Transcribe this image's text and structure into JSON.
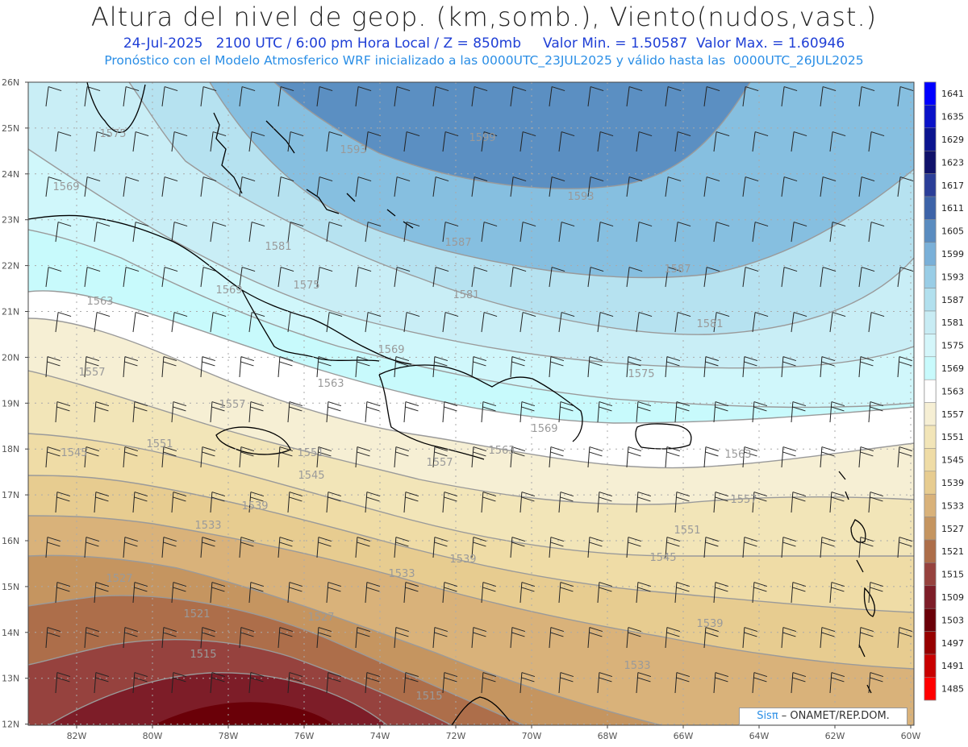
{
  "header": {
    "title": "Altura del nivel de geop. (km,somb.), Viento(nudos,vast.)",
    "line1": "24-Jul-2025   2100 UTC / 6:00 pm Hora Local / Z = 850mb     Valor Min. = 1.50587  Valor Max. = 1.60946",
    "line2": "Pronóstico con el Modelo Atmosferico WRF inicializado a las 0000UTC_23JUL2025 y válido hasta las  0000UTC_26JUL2025"
  },
  "map": {
    "lat_ticks": [
      "26N",
      "25N",
      "24N",
      "23N",
      "22N",
      "21N",
      "20N",
      "19N",
      "18N",
      "17N",
      "16N",
      "15N",
      "14N",
      "13N",
      "12N"
    ],
    "lon_ticks": [
      "82W",
      "80W",
      "78W",
      "76W",
      "74W",
      "72W",
      "70W",
      "68W",
      "66W",
      "64W",
      "62W",
      "60W"
    ],
    "contour_labels": [
      {
        "text": "1575"
      },
      {
        "text": "1569"
      },
      {
        "text": "1593"
      },
      {
        "text": "1599"
      },
      {
        "text": "1593"
      },
      {
        "text": "1581"
      },
      {
        "text": "1587"
      },
      {
        "text": "1575"
      },
      {
        "text": "1569"
      },
      {
        "text": "1581"
      },
      {
        "text": "1587"
      },
      {
        "text": "1581"
      },
      {
        "text": "1563"
      },
      {
        "text": "1557"
      },
      {
        "text": "1569"
      },
      {
        "text": "1575"
      },
      {
        "text": "1563"
      },
      {
        "text": "1557"
      },
      {
        "text": "1551"
      },
      {
        "text": "1545"
      },
      {
        "text": "1551"
      },
      {
        "text": "1545"
      },
      {
        "text": "1539"
      },
      {
        "text": "1569"
      },
      {
        "text": "1563"
      },
      {
        "text": "1557"
      },
      {
        "text": "1563"
      },
      {
        "text": "1557"
      },
      {
        "text": "1551"
      },
      {
        "text": "1545"
      },
      {
        "text": "1533"
      },
      {
        "text": "1527"
      },
      {
        "text": "1539"
      },
      {
        "text": "1527"
      },
      {
        "text": "1533"
      },
      {
        "text": "1521"
      },
      {
        "text": "1515"
      },
      {
        "text": "1515"
      },
      {
        "text": "1533"
      },
      {
        "text": "1539"
      }
    ]
  },
  "colorbar": {
    "labels": [
      "1641",
      "1635",
      "1629",
      "1623",
      "1617",
      "1611",
      "1605",
      "1599",
      "1593",
      "1587",
      "1581",
      "1575",
      "1569",
      "1563",
      "1557",
      "1551",
      "1545",
      "1539",
      "1533",
      "1527",
      "1521",
      "1515",
      "1509",
      "1503",
      "1497",
      "1491",
      "1485"
    ],
    "colors": [
      "#0000ff",
      "#0a12c8",
      "#0b148f",
      "#10126a",
      "#2b3e98",
      "#3d63a8",
      "#5a8cc0",
      "#7ab0d8",
      "#99cde6",
      "#b2e0ee",
      "#c8ecf4",
      "#d4f6fa",
      "#c8fafc",
      "#ffffff",
      "#f6efd4",
      "#f2e5b8",
      "#efdca6",
      "#e7cc90",
      "#d9b27a",
      "#c59560",
      "#ad6e4a",
      "#96423e",
      "#7d1d28",
      "#6a0008",
      "#960000",
      "#c80000",
      "#ff0000"
    ]
  },
  "credit": {
    "brand": "Sisπ",
    "text": " – ONAMET/REP.DOM."
  }
}
